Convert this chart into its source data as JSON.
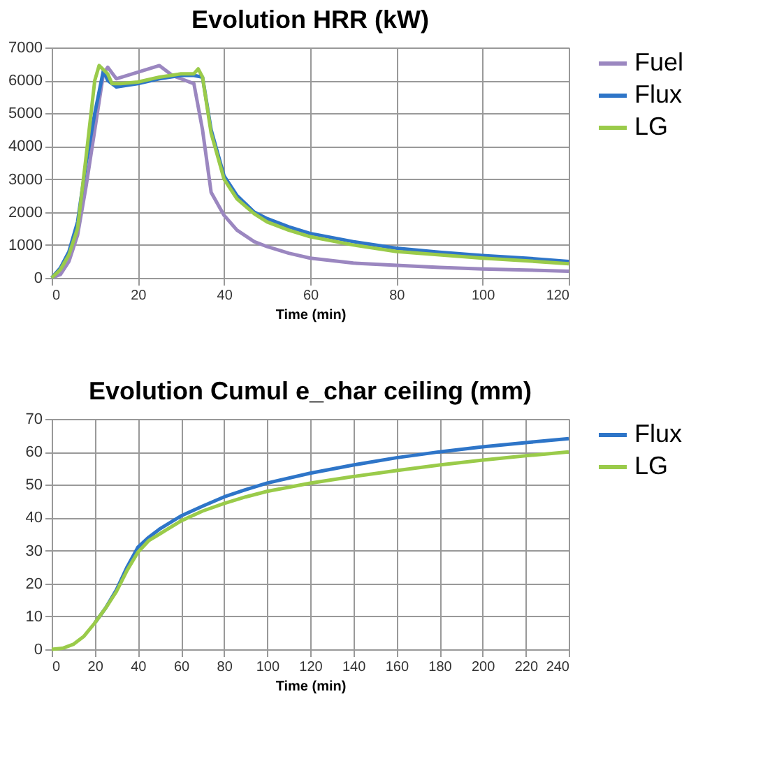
{
  "chart_data": [
    {
      "type": "line",
      "title": "Evolution HRR (kW)",
      "xlabel": "Time (min)",
      "xlim": [
        0,
        120
      ],
      "xticks": [
        0,
        20,
        40,
        60,
        80,
        100,
        120
      ],
      "ylim": [
        0,
        7000
      ],
      "yticks": [
        0,
        1000,
        2000,
        3000,
        4000,
        5000,
        6000,
        7000
      ],
      "grid": true,
      "legend": "right",
      "marker": "none",
      "line_style": "solid",
      "series": [
        {
          "name": "Fuel",
          "color": "#9b87c0",
          "x": [
            0,
            2,
            4,
            6,
            8,
            10,
            12,
            13,
            15,
            20,
            25,
            28,
            33,
            35,
            37,
            40,
            43,
            47,
            50,
            55,
            60,
            70,
            80,
            90,
            100,
            110,
            120
          ],
          "values": [
            0,
            100,
            500,
            1300,
            2800,
            4500,
            6200,
            6400,
            6050,
            6250,
            6450,
            6150,
            5900,
            4500,
            2600,
            1900,
            1450,
            1100,
            950,
            750,
            600,
            450,
            380,
            320,
            270,
            240,
            200
          ]
        },
        {
          "name": "Flux",
          "color": "#2e75c8",
          "x": [
            0,
            2,
            4,
            6,
            8,
            10,
            12,
            13,
            15,
            20,
            25,
            30,
            33,
            35,
            37,
            40,
            43,
            47,
            50,
            55,
            60,
            70,
            80,
            90,
            100,
            110,
            120
          ],
          "values": [
            0,
            300,
            800,
            1700,
            3500,
            5000,
            6300,
            6000,
            5800,
            5900,
            6050,
            6150,
            6150,
            6100,
            4500,
            3100,
            2500,
            2000,
            1800,
            1550,
            1350,
            1100,
            900,
            780,
            680,
            600,
            500
          ]
        },
        {
          "name": "LG",
          "color": "#9acb4a",
          "x": [
            0,
            2,
            4,
            6,
            8,
            10,
            11,
            13,
            14,
            16,
            20,
            25,
            30,
            33,
            34,
            35,
            37,
            40,
            43,
            47,
            50,
            55,
            60,
            70,
            80,
            90,
            100,
            110,
            120
          ],
          "values": [
            0,
            250,
            700,
            1500,
            3700,
            6000,
            6450,
            6200,
            5900,
            5900,
            5950,
            6100,
            6200,
            6200,
            6350,
            6100,
            4400,
            3000,
            2400,
            1950,
            1700,
            1450,
            1250,
            1000,
            800,
            700,
            600,
            520,
            430
          ]
        }
      ]
    },
    {
      "type": "line",
      "title": "Evolution Cumul e_char ceiling (mm)",
      "xlabel": "Time (min)",
      "xlim": [
        0,
        240
      ],
      "xticks": [
        0,
        20,
        40,
        60,
        80,
        100,
        120,
        140,
        160,
        180,
        200,
        220,
        240
      ],
      "ylim": [
        0,
        70
      ],
      "yticks": [
        0,
        10,
        20,
        30,
        40,
        50,
        60,
        70
      ],
      "grid": true,
      "legend": "right",
      "marker": "none",
      "line_style": "solid",
      "series": [
        {
          "name": "Flux",
          "color": "#2e75c8",
          "x": [
            20,
            25,
            30,
            35,
            40,
            45,
            50,
            60,
            70,
            80,
            90,
            100,
            120,
            140,
            160,
            180,
            200,
            220,
            240
          ],
          "values": [
            8,
            12.5,
            18,
            25,
            31,
            34,
            36.5,
            40.5,
            43.5,
            46.3,
            48.5,
            50.5,
            53.5,
            56,
            58.2,
            60,
            61.5,
            62.8,
            64
          ]
        },
        {
          "name": "LG",
          "color": "#9acb4a",
          "x": [
            0,
            5,
            10,
            15,
            20,
            25,
            30,
            35,
            40,
            45,
            50,
            60,
            70,
            80,
            90,
            100,
            120,
            140,
            160,
            180,
            200,
            220,
            240
          ],
          "values": [
            0,
            0.3,
            1.5,
            4,
            8,
            12.5,
            17.5,
            24,
            29.5,
            33,
            35,
            39,
            42,
            44.3,
            46.3,
            48,
            50.5,
            52.5,
            54.3,
            56,
            57.5,
            58.8,
            60
          ]
        }
      ]
    }
  ]
}
